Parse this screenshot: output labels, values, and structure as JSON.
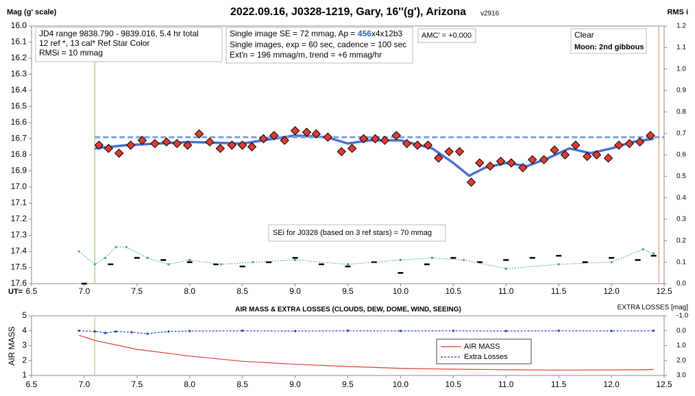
{
  "chart_data": [
    {
      "type": "scatter",
      "title": "2022.09.16, J0328-1219, Gary, 16''(g'), Arizona",
      "subtitle": "v2916",
      "y_label": "Mag (g' scale)",
      "y2_label": "RMS i",
      "x_label": "UT=",
      "xlim": [
        6.5,
        12.5
      ],
      "xticks": [
        6.5,
        {
          "value": 7,
          "label": "7.0"
        },
        7.5,
        {
          "value": 8,
          "label": "8.0"
        },
        8.5,
        {
          "value": 9,
          "label": "9.0"
        },
        9.5,
        {
          "value": 10,
          "label": "10.0"
        },
        10.5,
        {
          "value": 11,
          "label": "11.0"
        },
        11.5,
        {
          "value": 12,
          "label": "12.0"
        },
        12.5
      ],
      "ylim": [
        16.0,
        17.6
      ],
      "y_inverted": true,
      "yticks": [
        {
          "value": 16,
          "label": "16.0"
        },
        16.1,
        16.2,
        16.3,
        16.4,
        16.5,
        16.6,
        16.7,
        16.8,
        16.9,
        {
          "value": 17,
          "label": "17.0"
        },
        17.1,
        17.2,
        17.3,
        17.4,
        17.5,
        17.6
      ],
      "y2lim": [
        0,
        1.2
      ],
      "y2ticks": [
        {
          "value": 0,
          "label": "0.0"
        },
        0.1,
        0.2,
        0.3,
        0.4,
        0.5,
        0.6,
        0.7,
        0.8,
        0.9,
        {
          "value": 1,
          "label": "1.0"
        },
        1.1,
        1.2
      ],
      "annotations": {
        "box1": [
          "JD4 range 9838.790 - 9839.016, 5.4 hr total",
          "12 ref *, 13 cal*  Ref Star Color",
          "RMSi = 10 mmag"
        ],
        "box2": [
          "Single image SE = 72 mmag, Ap = ",
          "456",
          "x4x12b3",
          "Single images, exp = 60 sec, cadence = 100 sec",
          "Ext'n = 196 mmag/m, trend = +6 mmag/hr"
        ],
        "amc": "AMC' = +0.000",
        "box3": [
          "Clear",
          "Moon: 2nd gibbous"
        ],
        "sei": "SEi for J0328 (based on 3 ref stars) = 70 mmag"
      },
      "vlines": [
        {
          "x": 7.1,
          "color": "#a8d08d"
        },
        {
          "x": 12.45,
          "color": "#f4a6a0"
        }
      ],
      "series": [
        {
          "style": "line",
          "color": "#4a6fd0",
          "x": [
            7.1,
            7.4,
            8.0,
            8.5,
            9.0,
            9.3,
            9.5,
            9.7,
            10.0,
            10.3,
            10.5,
            10.65,
            10.8,
            11.0,
            11.2,
            11.4,
            11.6,
            11.8,
            12.0,
            12.2,
            12.4
          ],
          "values": [
            16.76,
            16.74,
            16.72,
            16.73,
            16.68,
            16.69,
            16.73,
            16.71,
            16.71,
            16.76,
            16.85,
            16.93,
            16.88,
            16.85,
            16.87,
            16.82,
            16.76,
            16.79,
            16.76,
            16.72,
            16.7
          ]
        },
        {
          "style": "dashed-line",
          "color": "#7f9fd8",
          "x": [
            7.1,
            12.5
          ],
          "values": [
            16.69,
            16.69
          ]
        },
        {
          "style": "diamond",
          "color": "#e03c31",
          "x": [
            7.14,
            7.23,
            7.33,
            7.44,
            7.55,
            7.67,
            7.78,
            7.88,
            7.98,
            8.09,
            8.19,
            8.29,
            8.4,
            8.5,
            8.59,
            8.7,
            8.8,
            8.9,
            9.0,
            9.11,
            9.2,
            9.31,
            9.44,
            9.54,
            9.65,
            9.76,
            9.85,
            9.96,
            10.06,
            10.16,
            10.26,
            10.36,
            10.46,
            10.56,
            10.67,
            10.75,
            10.85,
            10.95,
            11.05,
            11.16,
            11.25,
            11.36,
            11.46,
            11.56,
            11.66,
            11.77,
            11.86,
            11.97,
            12.07,
            12.17,
            12.27,
            12.37
          ],
          "values": [
            16.74,
            16.76,
            16.79,
            16.74,
            16.71,
            16.73,
            16.72,
            16.73,
            16.74,
            16.67,
            16.72,
            16.76,
            16.74,
            16.74,
            16.75,
            16.7,
            16.68,
            16.71,
            16.65,
            16.66,
            16.67,
            16.69,
            16.78,
            16.76,
            16.7,
            16.7,
            16.71,
            16.68,
            16.73,
            16.74,
            16.74,
            16.82,
            16.78,
            16.78,
            16.97,
            16.85,
            16.87,
            16.84,
            16.85,
            16.88,
            16.83,
            16.83,
            16.77,
            16.8,
            16.74,
            16.81,
            16.8,
            16.82,
            16.74,
            16.73,
            16.72,
            16.68
          ]
        },
        {
          "style": "dash",
          "color": "#000000",
          "axis": "y2",
          "x": [
            7.0,
            7.25,
            7.5,
            7.75,
            8.0,
            8.25,
            8.5,
            8.75,
            9.0,
            9.25,
            9.5,
            9.75,
            10.0,
            10.25,
            10.5,
            10.75,
            11.0,
            11.25,
            11.5,
            11.75,
            12.0,
            12.25,
            12.4
          ],
          "values": [
            0.0,
            0.09,
            0.12,
            0.11,
            0.1,
            0.09,
            0.08,
            0.1,
            0.12,
            0.09,
            0.08,
            0.1,
            0.05,
            0.09,
            0.12,
            0.1,
            0.11,
            0.12,
            0.13,
            0.1,
            0.12,
            0.11,
            0.13
          ]
        },
        {
          "style": "dotted-line",
          "color": "#4aa0a8",
          "axis": "y2",
          "x": [
            6.95,
            7.1,
            7.2,
            7.3,
            7.4,
            7.6,
            7.8,
            8.0,
            8.3,
            8.6,
            9.0,
            9.5,
            10.0,
            10.3,
            10.6,
            11.0,
            11.5,
            12.0,
            12.3,
            12.4
          ],
          "values": [
            0.15,
            0.09,
            0.12,
            0.17,
            0.17,
            0.12,
            0.09,
            0.11,
            0.09,
            0.1,
            0.11,
            0.09,
            0.11,
            0.12,
            0.11,
            0.07,
            0.09,
            0.1,
            0.16,
            0.14
          ]
        }
      ]
    },
    {
      "type": "line",
      "title": "AIR MASS & EXTRA LOSSES (CLOUDS, DEW, DOME, WIND, SEEING)",
      "y_label": "AIR MASS",
      "y2_label": "EXTRA LOSSES [mag]",
      "xlim": [
        6.5,
        12.5
      ],
      "xticks": [
        6.5,
        {
          "value": 7,
          "label": "7.0"
        },
        7.5,
        {
          "value": 8,
          "label": "8.0"
        },
        8.5,
        {
          "value": 9,
          "label": "9.0"
        },
        9.5,
        {
          "value": 10,
          "label": "10.0"
        },
        10.5,
        {
          "value": 11,
          "label": "11.0"
        },
        11.5,
        {
          "value": 12,
          "label": "12.0"
        },
        12.5
      ],
      "ylim": [
        1,
        5
      ],
      "yticks": [
        1,
        2,
        3,
        4,
        5
      ],
      "y2lim": [
        -1,
        3
      ],
      "y2_inverted": true,
      "y2ticks": [
        {
          "value": -1,
          "label": "-1.0"
        },
        {
          "value": 0,
          "label": "0.0"
        },
        {
          "value": 1,
          "label": "1.0"
        },
        {
          "value": 2,
          "label": "2.0"
        },
        {
          "value": 3,
          "label": "3.0"
        }
      ],
      "vlines": [
        {
          "x": 7.1,
          "color": "#c8d89a"
        }
      ],
      "legend": "lower-right",
      "series": [
        {
          "name": "AIR MASS",
          "style": "line",
          "color": "#e03c31",
          "x": [
            6.95,
            7.1,
            7.5,
            8.0,
            8.5,
            9.0,
            9.5,
            10.0,
            10.5,
            11.0,
            11.5,
            12.0,
            12.4
          ],
          "values": [
            3.7,
            3.35,
            2.75,
            2.3,
            1.95,
            1.75,
            1.6,
            1.48,
            1.42,
            1.38,
            1.36,
            1.37,
            1.39
          ]
        },
        {
          "name": "Extra Losses",
          "style": "dashed-line",
          "color": "#1f3fbf",
          "axis": "y2",
          "x": [
            6.95,
            7.1,
            7.2,
            7.3,
            7.45,
            7.6,
            7.8,
            8.0,
            8.5,
            9.0,
            9.5,
            10.0,
            10.5,
            11.0,
            11.5,
            12.0,
            12.4
          ],
          "values": [
            0.0,
            0.05,
            0.15,
            0.05,
            0.1,
            0.2,
            0.05,
            0.02,
            0.0,
            0.02,
            0.0,
            0.01,
            0.0,
            0.02,
            0.0,
            0.01,
            0.0
          ]
        }
      ]
    }
  ]
}
